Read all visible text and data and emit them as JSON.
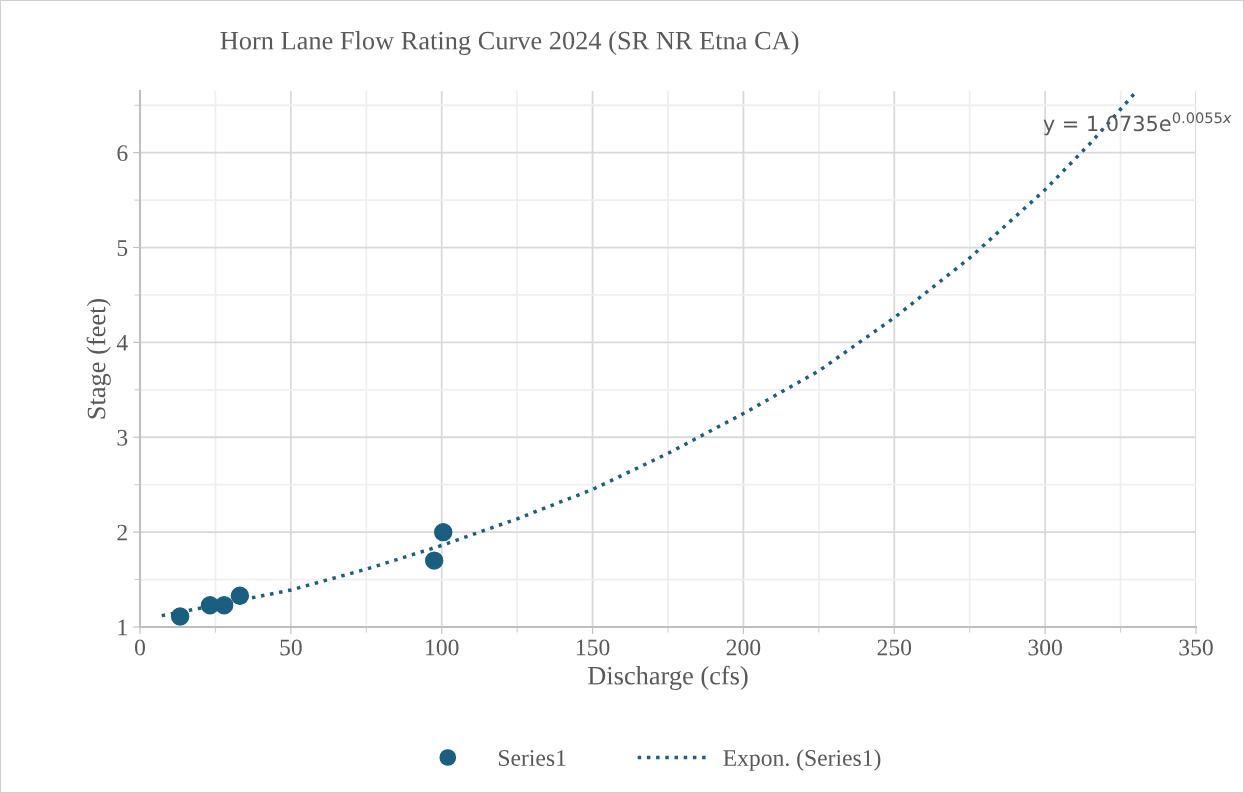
{
  "chart_data": {
    "type": "scatter",
    "title": "Horn Lane Flow Rating Curve 2024 (SR NR Etna CA)",
    "xlabel": "Discharge (cfs)",
    "ylabel": "Stage (feet)",
    "series": [
      {
        "name": "Series1",
        "color": "#1a5e80",
        "marker": "circle",
        "x": [
          13.3,
          23.2,
          27.9,
          33.1,
          97.5,
          100.5
        ],
        "values": [
          1.11,
          1.23,
          1.23,
          1.33,
          1.7,
          2.0
        ]
      },
      {
        "name": "Expon. (Series1)",
        "type": "line",
        "color": "#1a5e80",
        "line_style": "dotted",
        "marker": "none",
        "x": [
          7.2,
          25,
          50,
          75,
          100,
          125,
          150,
          175,
          200,
          225,
          250,
          275,
          300,
          315,
          329.8
        ],
        "values": [
          1.12,
          1.23,
          1.39,
          1.61,
          1.86,
          2.14,
          2.45,
          2.83,
          3.25,
          3.7,
          4.26,
          4.89,
          5.61,
          6.1,
          6.63
        ]
      }
    ],
    "annotations": [
      "y = 1.0735e$^{0.0055x}$"
    ],
    "xlim": [
      0,
      350
    ],
    "xticks": [
      0,
      50,
      100,
      150,
      200,
      250,
      300,
      350
    ],
    "ylim": [
      1,
      6.65
    ],
    "yticks": [
      1,
      2,
      3,
      4,
      5,
      6
    ],
    "grid": true,
    "legend": "bottom"
  }
}
